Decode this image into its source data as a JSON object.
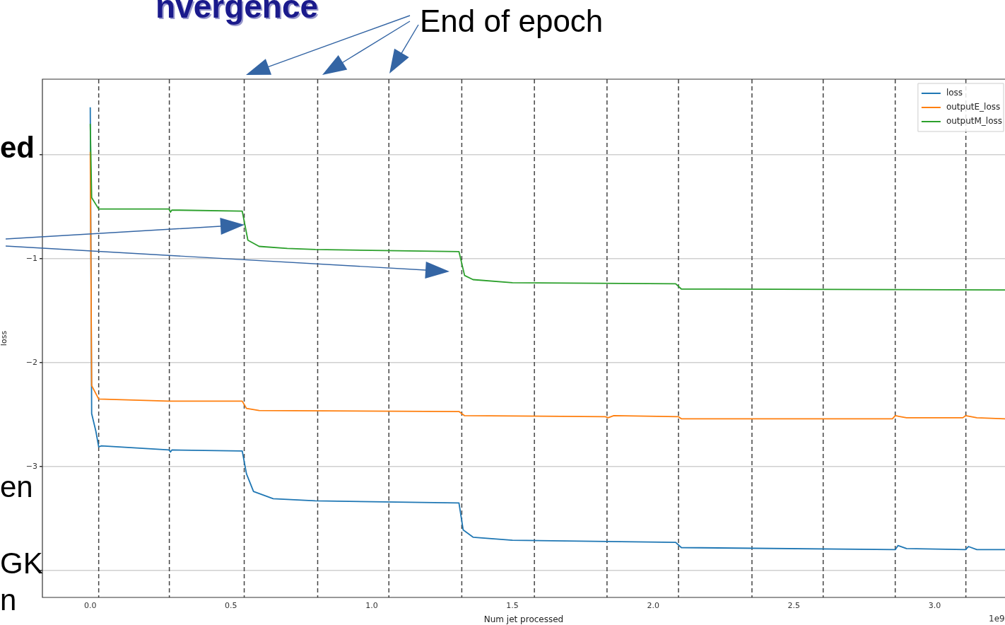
{
  "chart_data": {
    "type": "line",
    "xlabel": "Num jet processed",
    "ylabel": "loss",
    "annotations": [
      "End of epoch",
      "nvergence",
      "ed",
      "en",
      "GK",
      "n",
      "1e9"
    ],
    "xlim": [
      -0.17,
      3.25
    ],
    "xticks": [
      {
        "value": 0,
        "label": "0.0"
      },
      0.5,
      {
        "value": 1,
        "label": "1.0"
      },
      1.5,
      {
        "value": 2,
        "label": "2.0"
      },
      2.5,
      {
        "value": 3,
        "label": "3.0"
      }
    ],
    "ylim": [
      -4.26,
      0.73
    ],
    "yticks": [
      {
        "value": 0,
        "label": null
      },
      {
        "value": -1,
        "label": "−1"
      },
      {
        "value": -2,
        "label": "−2"
      },
      {
        "value": -3,
        "label": "−3"
      },
      {
        "value": -4,
        "label": null
      }
    ],
    "grid": "y",
    "legend": "top right",
    "line_style": "solid",
    "marker": "none",
    "ref_lines": [
      {
        "axis": "x",
        "value": 0.03,
        "color": "#444444",
        "line_style": "dashed"
      },
      {
        "axis": "x",
        "value": 0.281,
        "color": "#444444",
        "line_style": "dashed"
      },
      {
        "axis": "x",
        "value": 0.547,
        "color": "#444444",
        "line_style": "dashed"
      },
      {
        "axis": "x",
        "value": 0.808,
        "color": "#444444",
        "line_style": "dashed"
      },
      {
        "axis": "x",
        "value": 1.061,
        "color": "#444444",
        "line_style": "dashed"
      },
      {
        "axis": "x",
        "value": 1.32,
        "color": "#444444",
        "line_style": "dashed"
      },
      {
        "axis": "x",
        "value": 1.578,
        "color": "#444444",
        "line_style": "dashed"
      },
      {
        "axis": "x",
        "value": 1.836,
        "color": "#444444",
        "line_style": "dashed"
      },
      {
        "axis": "x",
        "value": 2.09,
        "color": "#444444",
        "line_style": "dashed"
      },
      {
        "axis": "x",
        "value": 2.351,
        "color": "#444444",
        "line_style": "dashed"
      },
      {
        "axis": "x",
        "value": 2.604,
        "color": "#444444",
        "line_style": "dashed"
      },
      {
        "axis": "x",
        "value": 2.86,
        "color": "#444444",
        "line_style": "dashed"
      },
      {
        "axis": "x",
        "value": 3.111,
        "color": "#444444",
        "line_style": "dashed"
      }
    ],
    "series": [
      {
        "name": "loss",
        "color": "#1f77b4",
        "x": [
          0,
          0.005,
          0.02,
          0.03,
          0.04,
          0.28,
          0.285,
          0.29,
          0.54,
          0.555,
          0.58,
          0.65,
          0.8,
          1.31,
          1.325,
          1.36,
          1.5,
          2.08,
          2.1,
          2.86,
          2.87,
          2.9,
          3.11,
          3.12,
          3.15,
          3.25
        ],
        "values": [
          0.46,
          -2.49,
          -2.66,
          -2.81,
          -2.8,
          -2.84,
          -2.86,
          -2.84,
          -2.85,
          -3.07,
          -3.24,
          -3.31,
          -3.33,
          -3.35,
          -3.61,
          -3.68,
          -3.71,
          -3.73,
          -3.78,
          -3.8,
          -3.76,
          -3.79,
          -3.8,
          -3.77,
          -3.8,
          -3.8
        ]
      },
      {
        "name": "outputE_loss",
        "color": "#ff7f0e",
        "x": [
          0,
          0.005,
          0.03,
          0.28,
          0.54,
          0.555,
          0.6,
          1.31,
          1.33,
          1.83,
          1.84,
          1.86,
          2.09,
          2.1,
          2.85,
          2.86,
          2.9,
          3.1,
          3.11,
          3.15,
          3.25
        ],
        "values": [
          0.03,
          -2.22,
          -2.35,
          -2.37,
          -2.37,
          -2.44,
          -2.46,
          -2.47,
          -2.51,
          -2.52,
          -2.53,
          -2.51,
          -2.52,
          -2.54,
          -2.54,
          -2.51,
          -2.53,
          -2.53,
          -2.51,
          -2.53,
          -2.54
        ]
      },
      {
        "name": "outputM_loss",
        "color": "#2ca02c",
        "x": [
          0,
          0.005,
          0.03,
          0.28,
          0.285,
          0.29,
          0.54,
          0.56,
          0.6,
          0.7,
          0.8,
          1.31,
          1.33,
          1.36,
          1.5,
          2.08,
          2.1,
          3.25
        ],
        "values": [
          0.3,
          -0.41,
          -0.52,
          -0.52,
          -0.55,
          -0.53,
          -0.54,
          -0.82,
          -0.88,
          -0.9,
          -0.91,
          -0.93,
          -1.16,
          -1.2,
          -1.23,
          -1.24,
          -1.29,
          -1.3
        ]
      }
    ]
  }
}
